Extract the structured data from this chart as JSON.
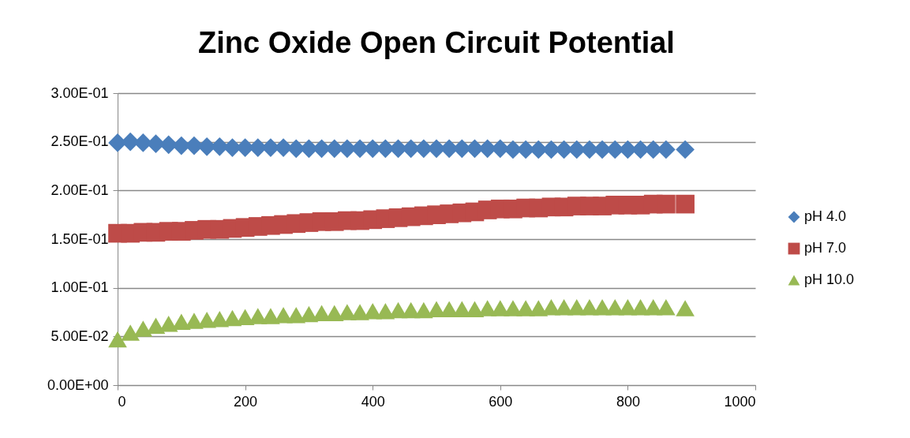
{
  "chart_data": {
    "type": "scatter",
    "title": "Zinc Oxide Open Circuit Potential",
    "x": [
      0,
      20,
      40,
      60,
      80,
      100,
      120,
      140,
      160,
      180,
      200,
      220,
      240,
      260,
      280,
      300,
      320,
      340,
      360,
      380,
      400,
      420,
      440,
      460,
      480,
      500,
      520,
      540,
      560,
      580,
      600,
      620,
      640,
      660,
      680,
      700,
      720,
      740,
      760,
      780,
      800,
      820,
      840,
      860,
      890
    ],
    "series": [
      {
        "name": "pH 4.0",
        "color": "#4a7ebb",
        "marker": "diamond",
        "values": [
          0.249,
          0.25,
          0.249,
          0.248,
          0.247,
          0.246,
          0.246,
          0.245,
          0.245,
          0.244,
          0.244,
          0.244,
          0.244,
          0.244,
          0.243,
          0.243,
          0.243,
          0.243,
          0.243,
          0.243,
          0.243,
          0.243,
          0.243,
          0.243,
          0.243,
          0.243,
          0.243,
          0.243,
          0.243,
          0.243,
          0.243,
          0.242,
          0.242,
          0.242,
          0.242,
          0.242,
          0.242,
          0.242,
          0.242,
          0.242,
          0.242,
          0.242,
          0.242,
          0.242,
          0.242
        ]
      },
      {
        "name": "pH 7.0",
        "color": "#be4b48",
        "marker": "square",
        "values": [
          0.156,
          0.156,
          0.157,
          0.157,
          0.158,
          0.158,
          0.159,
          0.16,
          0.16,
          0.161,
          0.162,
          0.163,
          0.164,
          0.165,
          0.166,
          0.167,
          0.168,
          0.168,
          0.169,
          0.169,
          0.17,
          0.171,
          0.172,
          0.173,
          0.174,
          0.175,
          0.176,
          0.177,
          0.178,
          0.18,
          0.181,
          0.181,
          0.182,
          0.182,
          0.183,
          0.183,
          0.184,
          0.184,
          0.184,
          0.185,
          0.185,
          0.185,
          0.186,
          0.186,
          0.186
        ]
      },
      {
        "name": "pH 10.0",
        "color": "#98b954",
        "marker": "triangle",
        "values": [
          0.047,
          0.054,
          0.058,
          0.061,
          0.063,
          0.065,
          0.066,
          0.067,
          0.068,
          0.069,
          0.07,
          0.071,
          0.071,
          0.072,
          0.072,
          0.073,
          0.074,
          0.074,
          0.075,
          0.075,
          0.076,
          0.076,
          0.077,
          0.077,
          0.077,
          0.078,
          0.078,
          0.078,
          0.078,
          0.079,
          0.079,
          0.079,
          0.079,
          0.079,
          0.08,
          0.08,
          0.08,
          0.08,
          0.08,
          0.08,
          0.08,
          0.08,
          0.08,
          0.08,
          0.079
        ]
      }
    ],
    "xlim": [
      0,
      1000
    ],
    "xticks": [
      0,
      200,
      400,
      600,
      800,
      1000
    ],
    "ylim": [
      0,
      0.3
    ],
    "yticks": [
      {
        "value": 0,
        "label": "0.00E+00"
      },
      {
        "value": 0.05,
        "label": "5.00E-02"
      },
      {
        "value": 0.1,
        "label": "1.00E-01"
      },
      {
        "value": 0.15,
        "label": "1.50E-01"
      },
      {
        "value": 0.2,
        "label": "2.00E-01"
      },
      {
        "value": 0.25,
        "label": "2.50E-01"
      },
      {
        "value": 0.3,
        "label": "3.00E-01"
      }
    ],
    "grid": "y",
    "legend": "right"
  }
}
